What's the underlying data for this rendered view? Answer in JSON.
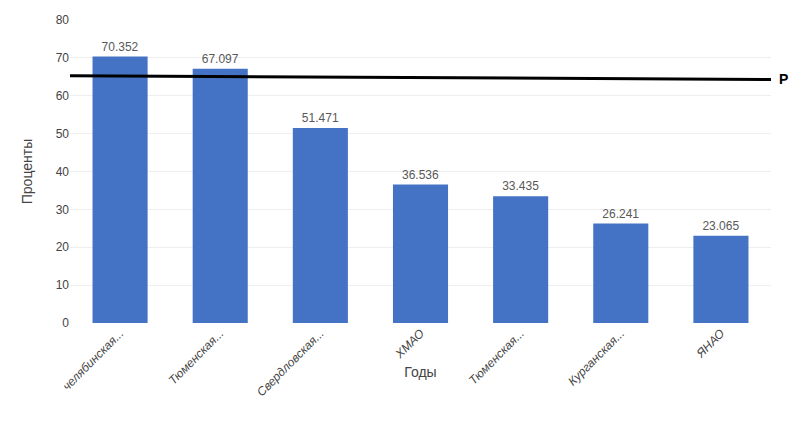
{
  "chart_data": {
    "type": "bar",
    "categories": [
      "челябинская...",
      "Тюменская...",
      "Свердловская...",
      "ХМАО",
      "Тюменская...",
      "Курганская...",
      "ЯНАО"
    ],
    "values": [
      70.352,
      67.097,
      51.471,
      36.536,
      33.435,
      26.241,
      23.065
    ],
    "color": "#4472C4",
    "data_labels": true,
    "xlabel": "Годы",
    "ylabel": "Проценты",
    "ylim": [
      0,
      80
    ],
    "yticks": [
      0,
      10,
      20,
      30,
      40,
      50,
      60,
      70,
      80
    ],
    "grid": true,
    "reference_line": {
      "label": "P",
      "y_start": 65.3,
      "y_end": 64.3,
      "color": "#000000"
    }
  }
}
